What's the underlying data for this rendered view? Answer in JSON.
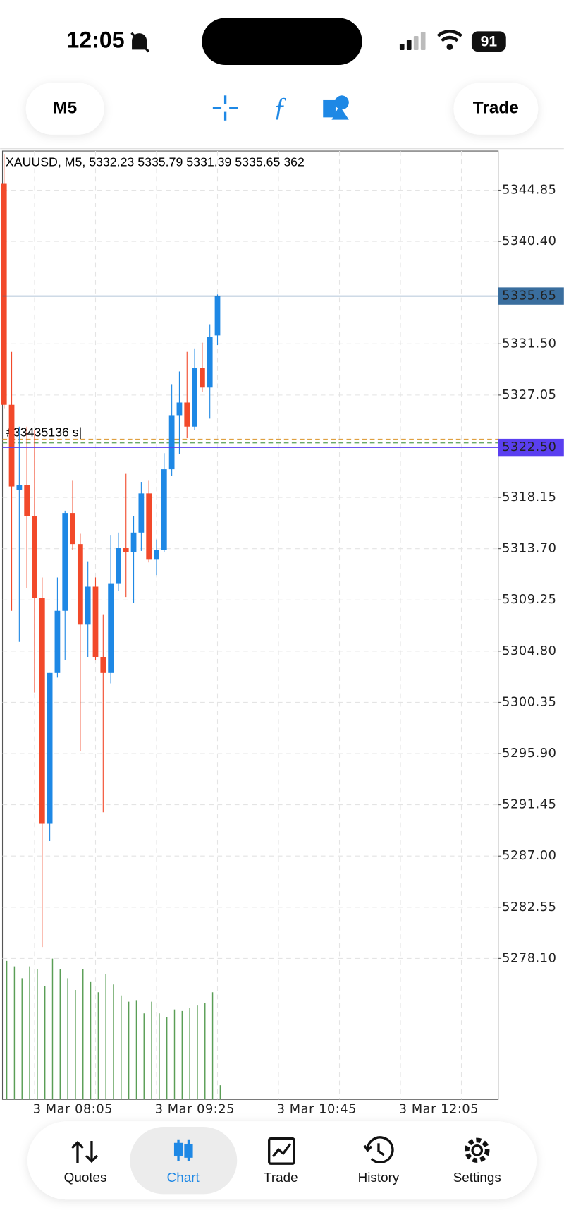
{
  "status_bar": {
    "time": "12:05",
    "battery": "91"
  },
  "toolbar": {
    "timeframe": "M5",
    "trade": "Trade"
  },
  "chart_data": {
    "type": "candlestick",
    "title": "XAUUSD, M5, 5332.23 5335.79 5331.39 5335.65 362",
    "open": [
      5345.4,
      5326.2,
      5318.8,
      5319.2,
      5316.5,
      5309.4,
      5289.8,
      5302.9,
      5308.3,
      5316.8,
      5314.1,
      5307.1,
      5310.4,
      5304.3,
      5302.9,
      5310.7,
      5313.8,
      5313.4,
      5315.1,
      5318.5,
      5312.8,
      5313.6,
      5320.6,
      5325.3,
      5326.4,
      5324.3,
      5329.4,
      5327.7,
      5332.23
    ],
    "high": [
      5348.0,
      5330.8,
      5324.3,
      5324.3,
      5324.0,
      5311.2,
      5302.9,
      5311.2,
      5317.0,
      5319.6,
      5315.0,
      5312.6,
      5311.2,
      5308.0,
      5314.9,
      5315.1,
      5320.2,
      5316.5,
      5319.5,
      5319.6,
      5314.5,
      5322.0,
      5328.0,
      5329.1,
      5330.8,
      5331.1,
      5331.6,
      5333.2,
      5335.79
    ],
    "low": [
      5325.9,
      5308.3,
      5305.6,
      5310.3,
      5301.2,
      5279.1,
      5288.3,
      5302.5,
      5304.0,
      5313.6,
      5296.1,
      5304.3,
      5304.0,
      5290.8,
      5302.0,
      5310.0,
      5309.5,
      5309.0,
      5313.5,
      5312.5,
      5311.4,
      5313.4,
      5320.0,
      5321.9,
      5323.3,
      5324.0,
      5327.3,
      5325.0,
      5331.39
    ],
    "close": [
      5326.2,
      5319.1,
      5319.2,
      5316.5,
      5309.4,
      5289.8,
      5302.9,
      5308.3,
      5316.8,
      5314.1,
      5307.1,
      5310.4,
      5304.3,
      5302.9,
      5310.7,
      5313.8,
      5313.4,
      5315.1,
      5318.5,
      5312.8,
      5313.6,
      5320.6,
      5325.3,
      5326.4,
      5324.3,
      5329.4,
      5327.7,
      5332.1,
      5335.65
    ],
    "volume": [
      3540,
      3400,
      3100,
      3400,
      3340,
      2900,
      3600,
      3340,
      3100,
      2800,
      3340,
      3000,
      2740,
      3200,
      2940,
      2660,
      2500,
      2540,
      2200,
      2500,
      2200,
      2100,
      2300,
      2260,
      2340,
      2400,
      2460,
      2740,
      362
    ],
    "up_color": "#1e88e5",
    "down_color": "#f2492a",
    "volume_color": "#5a9e56",
    "ylim": [
      5265.85,
      5348.25
    ],
    "yticks": [
      5344.85,
      {
        "value": 5340.4,
        "label": "5340.40"
      },
      {
        "value": 5331.5,
        "label": "5331.50"
      },
      5327.05,
      5318.15,
      {
        "value": 5313.7,
        "label": "5313.70"
      },
      5309.25,
      {
        "value": 5304.8,
        "label": "5304.80"
      },
      5300.35,
      {
        "value": 5295.9,
        "label": "5295.90"
      },
      5291.45,
      {
        "value": 5287,
        "label": "5287.00"
      },
      5282.55,
      {
        "value": 5278.1,
        "label": "5278.10"
      }
    ],
    "x_labels": [
      "3 Mar 08:05",
      "3 Mar 09:25",
      "3 Mar 10:45",
      "3 Mar 12:05"
    ],
    "price_markers": {
      "values": [
        5335.65,
        5322.5
      ],
      "value_labels": [
        "5335.65",
        "5322.50"
      ],
      "colors": [
        "#3a6e9e",
        "#5a3ff0"
      ]
    },
    "order_lines": {
      "values": [
        5323.2,
        5322.9
      ],
      "colors": [
        "#e0a040",
        "#6aa86a"
      ]
    },
    "order_label": "#33435136 s|",
    "grid": true
  },
  "nav": [
    "Quotes",
    "Chart",
    "Trade",
    "History",
    "Settings"
  ]
}
